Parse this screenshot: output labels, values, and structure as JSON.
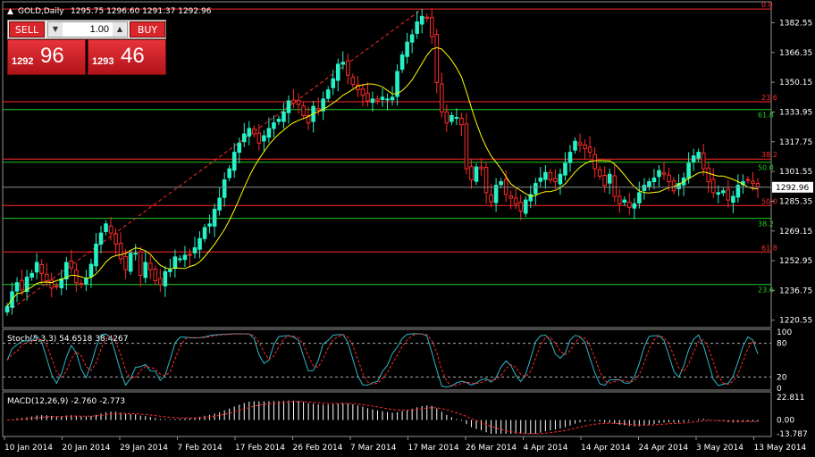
{
  "header": {
    "symbol": "GOLD,Daily",
    "ohlc": "1295.75 1296.60 1291.37 1292.96"
  },
  "one_click": {
    "sell_label": "SELL",
    "buy_label": "BUY",
    "lot": "1.00",
    "sell_small": "1292",
    "sell_big": "96",
    "buy_small": "1293",
    "buy_big": "46"
  },
  "colors": {
    "bull": "#25f2c6",
    "bear": "#ff2a2a",
    "ma": "#ffff00",
    "fib_red": "#ff2a2a",
    "fib_green": "#22cc22",
    "grid_text": "#ffffff",
    "stoch_main": "#2fb6c8",
    "stoch_signal": "#ff2a2a"
  },
  "price_axis": {
    "ticks": [
      "1382.55",
      "1366.35",
      "1350.15",
      "1333.95",
      "1317.75",
      "1301.55",
      "1285.35",
      "1269.15",
      "1252.95",
      "1236.75",
      "1220.55"
    ],
    "current": "1292.96"
  },
  "fib_levels_red": [
    {
      "label": "0.0",
      "price": 1390.0
    },
    {
      "label": "23.6",
      "price": 1339.5
    },
    {
      "label": "38.2",
      "price": 1308.3
    },
    {
      "label": "50.0",
      "price": 1283.0
    },
    {
      "label": "61.8",
      "price": 1257.7
    }
  ],
  "fib_levels_green": [
    {
      "label": "61.8",
      "price": 1335.3
    },
    {
      "label": "50.0",
      "price": 1306.6
    },
    {
      "label": "38.2",
      "price": 1276.0
    },
    {
      "label": "23.6",
      "price": 1240.0
    }
  ],
  "date_axis": [
    "10 Jan 2014",
    "20 Jan 2014",
    "29 Jan 2014",
    "7 Feb 2014",
    "17 Feb 2014",
    "26 Feb 2014",
    "7 Mar 2014",
    "17 Mar 2014",
    "26 Mar 2014",
    "4 Apr 2014",
    "14 Apr 2014",
    "24 Apr 2014",
    "3 May 2014",
    "13 May 2014"
  ],
  "stoch": {
    "label": "Stoch(5,3,3) 54.6518 38.4267",
    "ticks": [
      "100",
      "80",
      "20",
      "0"
    ]
  },
  "macd": {
    "label": "MACD(12,26,9) -2.760 -2.773",
    "ticks": [
      "22.811",
      "0.00",
      "-13.787"
    ]
  },
  "chart_data": {
    "type": "candlestick",
    "closes": [
      1228,
      1236,
      1241,
      1237,
      1244,
      1246,
      1252,
      1246,
      1242,
      1238,
      1239,
      1243,
      1252,
      1249,
      1241,
      1240,
      1243,
      1251,
      1262,
      1268,
      1273,
      1268,
      1262,
      1254,
      1248,
      1257,
      1257,
      1245,
      1252,
      1248,
      1242,
      1240,
      1247,
      1248,
      1255,
      1254,
      1256,
      1256,
      1260,
      1265,
      1271,
      1273,
      1281,
      1287,
      1297,
      1303,
      1312,
      1317,
      1322,
      1325,
      1322,
      1317,
      1321,
      1325,
      1328,
      1330,
      1334,
      1340,
      1339,
      1338,
      1332,
      1328,
      1337,
      1335,
      1341,
      1346,
      1352,
      1360,
      1361,
      1354,
      1349,
      1346,
      1343,
      1340,
      1341,
      1340,
      1342,
      1341,
      1342,
      1356,
      1365,
      1372,
      1376,
      1383,
      1386,
      1385,
      1375,
      1350,
      1334,
      1328,
      1332,
      1331,
      1327,
      1303,
      1297,
      1304,
      1303,
      1290,
      1285,
      1294,
      1296,
      1289,
      1287,
      1284,
      1280,
      1286,
      1289,
      1295,
      1298,
      1301,
      1297,
      1296,
      1300,
      1306,
      1312,
      1318,
      1316,
      1314,
      1312,
      1303,
      1299,
      1294,
      1300,
      1288,
      1284,
      1286,
      1282,
      1284,
      1290,
      1294,
      1296,
      1298,
      1302,
      1300,
      1296,
      1291,
      1295,
      1298,
      1306,
      1310,
      1312,
      1303,
      1296,
      1290,
      1290,
      1291,
      1286,
      1288,
      1294,
      1296,
      1297,
      1295,
      1293
    ],
    "ma_period": 10,
    "fib_high": 1390.0,
    "fib_low": 1225.0,
    "y_range": [
      1217.5,
      1393.0
    ],
    "current_price": 1292.96
  }
}
